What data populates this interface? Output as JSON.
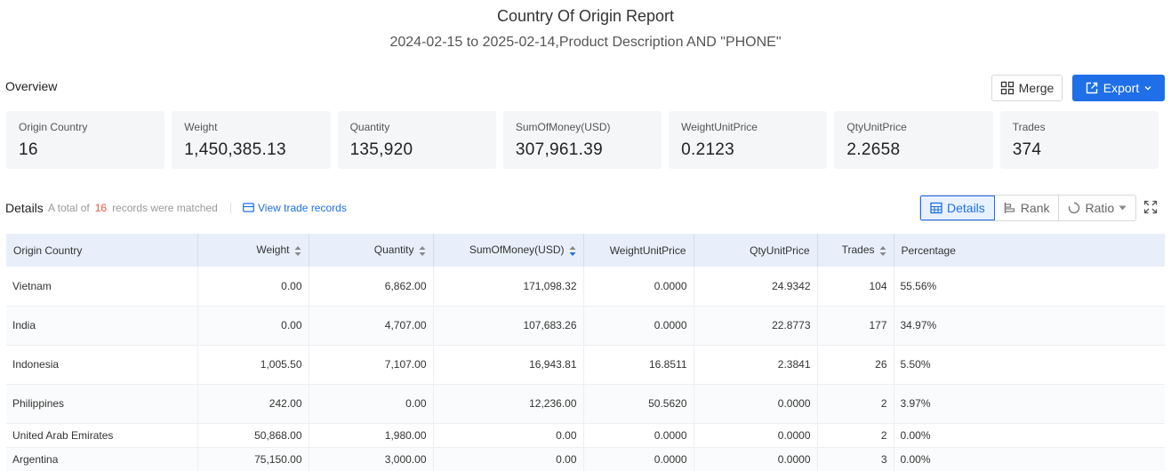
{
  "header": {
    "title": "Country Of Origin Report",
    "subtitle": "2024-02-15 to 2025-02-14,Product Description AND \"PHONE\""
  },
  "overview": {
    "label": "Overview",
    "merge_label": "Merge",
    "export_label": "Export"
  },
  "stats": [
    {
      "label": "Origin Country",
      "value": "16"
    },
    {
      "label": "Weight",
      "value": "1,450,385.13"
    },
    {
      "label": "Quantity",
      "value": "135,920"
    },
    {
      "label": "SumOfMoney(USD)",
      "value": "307,961.39"
    },
    {
      "label": "WeightUnitPrice",
      "value": "0.2123"
    },
    {
      "label": "QtyUnitPrice",
      "value": "2.2658"
    },
    {
      "label": "Trades",
      "value": "374"
    }
  ],
  "details": {
    "label": "Details",
    "total_prefix": "A total of",
    "total_count": "16",
    "total_suffix": "records were matched",
    "view_link": "View trade records",
    "views": {
      "details": "Details",
      "rank": "Rank",
      "ratio": "Ratio"
    }
  },
  "table": {
    "columns": [
      "Origin Country",
      "Weight",
      "Quantity",
      "SumOfMoney(USD)",
      "WeightUnitPrice",
      "QtyUnitPrice",
      "Trades",
      "Percentage"
    ],
    "rows": [
      [
        "Vietnam",
        "0.00",
        "6,862.00",
        "171,098.32",
        "0.0000",
        "24.9342",
        "104",
        "55.56%"
      ],
      [
        "India",
        "0.00",
        "4,707.00",
        "107,683.26",
        "0.0000",
        "22.8773",
        "177",
        "34.97%"
      ],
      [
        "Indonesia",
        "1,005.50",
        "7,107.00",
        "16,943.81",
        "16.8511",
        "2.3841",
        "26",
        "5.50%"
      ],
      [
        "Philippines",
        "242.00",
        "0.00",
        "12,236.00",
        "50.5620",
        "0.0000",
        "2",
        "3.97%"
      ],
      [
        "United Arab Emirates",
        "50,868.00",
        "1,980.00",
        "0.00",
        "0.0000",
        "0.0000",
        "2",
        "0.00%"
      ],
      [
        "Argentina",
        "75,150.00",
        "3,000.00",
        "0.00",
        "0.0000",
        "0.0000",
        "3",
        "0.00%"
      ]
    ]
  },
  "colors": {
    "accent": "#1e6fe8",
    "count_highlight": "#e8553a",
    "header_bg": "#e8effa"
  }
}
